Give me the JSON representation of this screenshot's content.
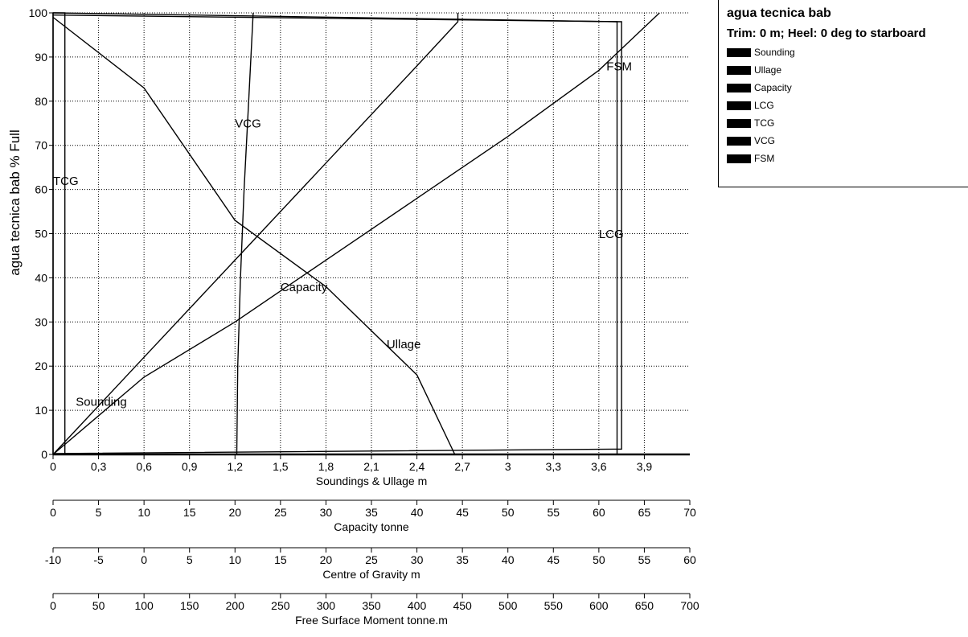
{
  "chart_data": {
    "type": "line",
    "y_axis": {
      "label": "agua tecnica bab  % Full",
      "ticks": [
        "0",
        "10",
        "20",
        "30",
        "40",
        "50",
        "60",
        "70",
        "80",
        "90",
        "100"
      ],
      "range": [
        0,
        100
      ]
    },
    "x_axes": [
      {
        "label": "Soundings & Ullage  m",
        "range": [
          0,
          4.2
        ],
        "ticks": [
          {
            "v": 0,
            "t": "0"
          },
          {
            "v": 0.3,
            "t": "0,3"
          },
          {
            "v": 0.6,
            "t": "0,6"
          },
          {
            "v": 0.9,
            "t": "0,9"
          },
          {
            "v": 1.2,
            "t": "1,2"
          },
          {
            "v": 1.5,
            "t": "1,5"
          },
          {
            "v": 1.8,
            "t": "1,8"
          },
          {
            "v": 2.1,
            "t": "2,1"
          },
          {
            "v": 2.4,
            "t": "2,4"
          },
          {
            "v": 2.7,
            "t": "2,7"
          },
          {
            "v": 3.0,
            "t": "3"
          },
          {
            "v": 3.3,
            "t": "3,3"
          },
          {
            "v": 3.6,
            "t": "3,6"
          },
          {
            "v": 3.9,
            "t": "3,9"
          }
        ]
      },
      {
        "label": "Capacity  tonne",
        "range": [
          0,
          70
        ],
        "ticks": [
          {
            "v": 0,
            "t": "0"
          },
          {
            "v": 5,
            "t": "5"
          },
          {
            "v": 10,
            "t": "10"
          },
          {
            "v": 15,
            "t": "15"
          },
          {
            "v": 20,
            "t": "20"
          },
          {
            "v": 25,
            "t": "25"
          },
          {
            "v": 30,
            "t": "30"
          },
          {
            "v": 35,
            "t": "35"
          },
          {
            "v": 40,
            "t": "40"
          },
          {
            "v": 45,
            "t": "45"
          },
          {
            "v": 50,
            "t": "50"
          },
          {
            "v": 55,
            "t": "55"
          },
          {
            "v": 60,
            "t": "60"
          },
          {
            "v": 65,
            "t": "65"
          },
          {
            "v": 70,
            "t": "70"
          }
        ]
      },
      {
        "label": "Centre of Gravity  m",
        "range": [
          -10,
          60
        ],
        "ticks": [
          {
            "v": -10,
            "t": "-10"
          },
          {
            "v": -5,
            "t": "-5"
          },
          {
            "v": 0,
            "t": "0"
          },
          {
            "v": 5,
            "t": "5"
          },
          {
            "v": 10,
            "t": "10"
          },
          {
            "v": 15,
            "t": "15"
          },
          {
            "v": 20,
            "t": "20"
          },
          {
            "v": 25,
            "t": "25"
          },
          {
            "v": 30,
            "t": "30"
          },
          {
            "v": 35,
            "t": "35"
          },
          {
            "v": 40,
            "t": "40"
          },
          {
            "v": 45,
            "t": "45"
          },
          {
            "v": 50,
            "t": "50"
          },
          {
            "v": 55,
            "t": "55"
          },
          {
            "v": 60,
            "t": "60"
          }
        ]
      },
      {
        "label": "Free Surface Moment  tonne.m",
        "range": [
          0,
          700
        ],
        "ticks": [
          {
            "v": 0,
            "t": "0"
          },
          {
            "v": 50,
            "t": "50"
          },
          {
            "v": 100,
            "t": "100"
          },
          {
            "v": 150,
            "t": "150"
          },
          {
            "v": 200,
            "t": "200"
          },
          {
            "v": 250,
            "t": "250"
          },
          {
            "v": 300,
            "t": "300"
          },
          {
            "v": 350,
            "t": "350"
          },
          {
            "v": 400,
            "t": "400"
          },
          {
            "v": 450,
            "t": "450"
          },
          {
            "v": 500,
            "t": "500"
          },
          {
            "v": 550,
            "t": "550"
          },
          {
            "v": 600,
            "t": "600"
          },
          {
            "v": 650,
            "t": "650"
          },
          {
            "v": 700,
            "t": "700"
          }
        ]
      }
    ],
    "series": [
      {
        "name": "Sounding",
        "axis": 0,
        "points": [
          [
            0.0,
            0
          ],
          [
            0.6,
            17.5
          ],
          [
            1.2,
            30
          ],
          [
            1.8,
            44
          ],
          [
            2.4,
            58
          ],
          [
            3.0,
            72
          ],
          [
            3.6,
            87
          ],
          [
            4.0,
            100
          ]
        ]
      },
      {
        "name": "Ullage",
        "axis": 0,
        "points": [
          [
            0.0,
            99
          ],
          [
            0.6,
            83
          ],
          [
            1.2,
            53
          ],
          [
            1.8,
            38
          ],
          [
            2.4,
            18
          ],
          [
            2.65,
            0
          ]
        ]
      },
      {
        "name": "Capacity",
        "axis": 1,
        "points": [
          [
            0.0,
            0
          ],
          [
            10,
            22
          ],
          [
            20,
            44
          ],
          [
            30,
            66
          ],
          [
            40,
            88
          ],
          [
            44.5,
            98
          ],
          [
            44.5,
            100
          ]
        ]
      },
      {
        "name": "VCG",
        "axis": 2,
        "points": [
          [
            10.2,
            0
          ],
          [
            10.3,
            20
          ],
          [
            10.6,
            40
          ],
          [
            11.0,
            60
          ],
          [
            11.5,
            80
          ],
          [
            12.0,
            100
          ]
        ]
      },
      {
        "name": "TCG",
        "axis": 2,
        "points": [
          [
            -10,
            0
          ],
          [
            -10,
            100
          ],
          [
            -8.7,
            100
          ],
          [
            -8.7,
            0
          ]
        ]
      },
      {
        "name": "LCG",
        "axis": 2,
        "points": [
          [
            -10,
            0.2
          ],
          [
            52.5,
            1.2
          ],
          [
            52.5,
            98
          ],
          [
            -10,
            99.5
          ]
        ]
      },
      {
        "name": "FSM",
        "axis": 3,
        "points": [
          [
            0,
            0
          ],
          [
            620,
            0
          ],
          [
            620,
            98
          ],
          [
            0,
            100
          ]
        ]
      }
    ],
    "curve_labels": [
      {
        "text": "VCG",
        "x": 1.2,
        "y": 74
      },
      {
        "text": "TCG",
        "x": 0.0,
        "y": 61
      },
      {
        "text": "Capacity",
        "x": 1.5,
        "y": 37
      },
      {
        "text": "Ullage",
        "x": 2.2,
        "y": 24
      },
      {
        "text": "Sounding",
        "x": 0.15,
        "y": 11
      },
      {
        "text": "FSM",
        "x": 3.65,
        "y": 87
      },
      {
        "text": "LCG",
        "x": 3.6,
        "y": 49
      }
    ]
  },
  "legend": {
    "title": "agua tecnica bab",
    "subtitle": "Trim: 0 m; Heel: 0 deg to starboard",
    "items": [
      "Sounding",
      "Ullage",
      "Capacity",
      "LCG",
      "TCG",
      "VCG",
      "FSM"
    ]
  }
}
